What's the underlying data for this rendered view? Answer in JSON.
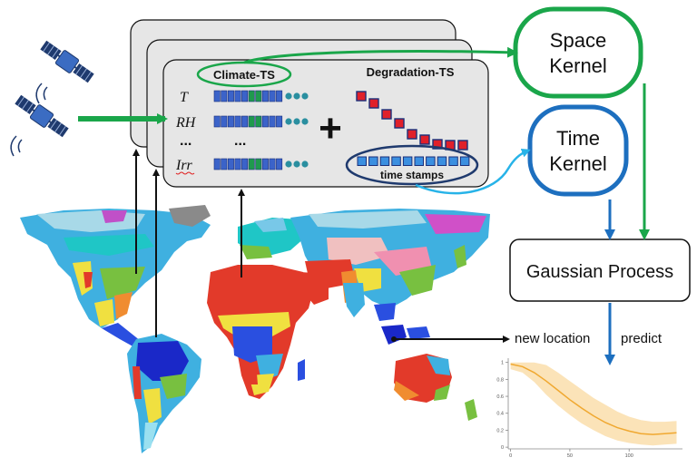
{
  "front_card": {
    "climate_label": "Climate-TS",
    "degradation_label": "Degradation-TS",
    "variables": [
      "T",
      "RH",
      "...",
      "Irr"
    ],
    "row_dots": "...",
    "plus": "+",
    "time_stamps_label": "time stamps"
  },
  "space_kernel": {
    "line1": "Space",
    "line2": "Kernel"
  },
  "time_kernel": {
    "line1": "Time",
    "line2": "Kernel"
  },
  "gaussian_process": {
    "label": "Gaussian Process"
  },
  "new_location": "new location",
  "predict": "predict",
  "colors": {
    "green": "#1aa64a",
    "blue": "#1d6fbf",
    "ts_blue": "#3b63c9",
    "ts_green": "#1f9a4d",
    "degradation_red": "#e0202a",
    "prediction_line": "#f0a830",
    "prediction_band": "#fbe3b8"
  },
  "chart_data": {
    "type": "line",
    "x": [
      0,
      10,
      20,
      30,
      40,
      50,
      60,
      70,
      80,
      90,
      100,
      110,
      120,
      130,
      140
    ],
    "mean": [
      0.98,
      0.95,
      0.88,
      0.78,
      0.67,
      0.56,
      0.46,
      0.37,
      0.29,
      0.23,
      0.19,
      0.16,
      0.15,
      0.16,
      0.17
    ],
    "upper": [
      1.0,
      1.0,
      1.0,
      0.97,
      0.88,
      0.78,
      0.68,
      0.58,
      0.5,
      0.42,
      0.36,
      0.32,
      0.3,
      0.3,
      0.31
    ],
    "lower": [
      0.92,
      0.88,
      0.77,
      0.62,
      0.49,
      0.38,
      0.28,
      0.2,
      0.13,
      0.08,
      0.05,
      0.03,
      0.02,
      0.03,
      0.04
    ],
    "xticks": [
      0,
      50,
      100
    ],
    "yticks": [
      0,
      0.2,
      0.4,
      0.6,
      0.8,
      1
    ],
    "xlim": [
      -2,
      145
    ],
    "ylim": [
      -0.02,
      1.05
    ],
    "grid": false
  }
}
